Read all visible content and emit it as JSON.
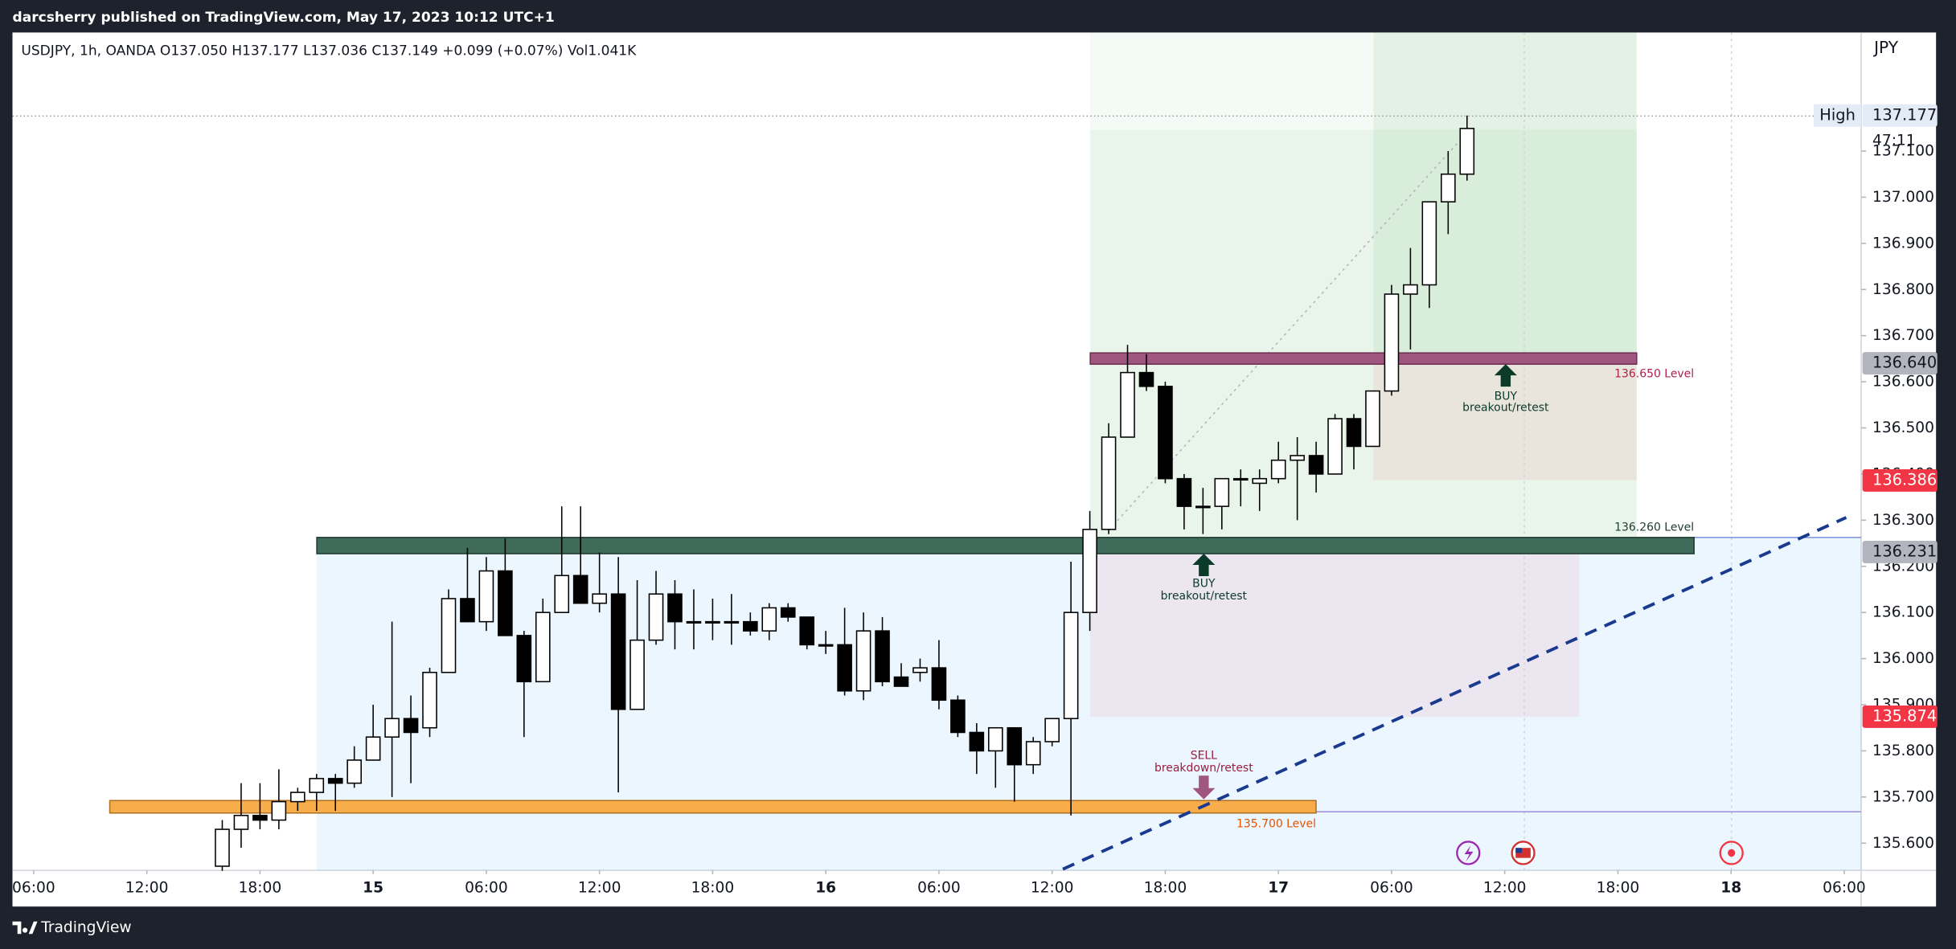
{
  "header": {
    "title": "darcsherry published on TradingView.com, May 17, 2023 10:12 UTC+1"
  },
  "chart_data": {
    "type": "candlestick",
    "legend": "USDJPY, 1h, OANDA  O137.050  H137.177  L137.036  C137.149  +0.099 (+0.07%)  Vol1.041K",
    "currency": "JPY",
    "up_color": "#ffffff",
    "down_color": "#000000",
    "wick_color": "#000000",
    "xlim": [
      4.876,
      102.9
    ],
    "xticks": [
      {
        "value": 6,
        "label": "06:00"
      },
      {
        "value": 12,
        "label": "12:00"
      },
      {
        "value": 18,
        "label": "18:00"
      },
      {
        "value": 24,
        "label": "15"
      },
      {
        "value": 30,
        "label": "06:00"
      },
      {
        "value": 36,
        "label": "12:00"
      },
      {
        "value": 42,
        "label": "18:00"
      },
      {
        "value": 48,
        "label": "16"
      },
      {
        "value": 54,
        "label": "06:00"
      },
      {
        "value": 60,
        "label": "12:00"
      },
      {
        "value": 66,
        "label": "18:00"
      },
      {
        "value": 72,
        "label": "17"
      },
      {
        "value": 78,
        "label": "06:00"
      },
      {
        "value": 84,
        "label": "12:00"
      },
      {
        "value": 90,
        "label": "18:00"
      },
      {
        "value": 96,
        "label": "18"
      },
      {
        "value": 102,
        "label": "06:00"
      }
    ],
    "ylim": [
      135.541,
      137.357
    ],
    "yticks": [
      {
        "value": 135.6,
        "label": "135.600"
      },
      {
        "value": 135.7,
        "label": "135.700"
      },
      {
        "value": 135.8,
        "label": "135.800"
      },
      {
        "value": 135.9,
        "label": "135.900"
      },
      {
        "value": 136.0,
        "label": "136.000"
      },
      {
        "value": 136.1,
        "label": "136.100"
      },
      {
        "value": 136.2,
        "label": "136.200"
      },
      {
        "value": 136.3,
        "label": "136.300"
      },
      {
        "value": 136.4,
        "label": "136.400"
      },
      {
        "value": 136.5,
        "label": "136.500"
      },
      {
        "value": 136.6,
        "label": "136.600"
      },
      {
        "value": 136.7,
        "label": "136.700"
      },
      {
        "value": 136.8,
        "label": "136.800"
      },
      {
        "value": 136.9,
        "label": "136.900"
      },
      {
        "value": 137.0,
        "label": "137.000"
      },
      {
        "value": 137.1,
        "label": "137.100"
      }
    ],
    "x": [
      16,
      17,
      18,
      19,
      20,
      21,
      22,
      23,
      24,
      25,
      26,
      27,
      28,
      29,
      30,
      31,
      32,
      33,
      34,
      35,
      36,
      37,
      38,
      39,
      40,
      41,
      42,
      43,
      44,
      45,
      46,
      47,
      48,
      49,
      50,
      51,
      52,
      53,
      54,
      55,
      56,
      57,
      58,
      59,
      60,
      61,
      62,
      63,
      64,
      65,
      66,
      67,
      68,
      69,
      70,
      71,
      72,
      73,
      74,
      75,
      76,
      77,
      78,
      79,
      80,
      81,
      82
    ],
    "open": [
      135.55,
      135.63,
      135.66,
      135.65,
      135.69,
      135.71,
      135.74,
      135.73,
      135.78,
      135.83,
      135.87,
      135.85,
      135.97,
      136.13,
      136.08,
      136.19,
      136.05,
      135.95,
      136.1,
      136.18,
      136.12,
      136.14,
      135.89,
      136.04,
      136.14,
      136.08,
      136.08,
      136.08,
      136.08,
      136.06,
      136.11,
      136.09,
      136.03,
      136.03,
      135.93,
      136.06,
      135.96,
      135.97,
      135.98,
      135.91,
      135.84,
      135.8,
      135.85,
      135.77,
      135.82,
      135.87,
      136.1,
      136.28,
      136.48,
      136.62,
      136.59,
      136.39,
      136.33,
      136.33,
      136.39,
      136.38,
      136.39,
      136.43,
      136.44,
      136.4,
      136.52,
      136.46,
      136.58,
      136.79,
      136.81,
      136.99,
      137.05
    ],
    "high": [
      135.65,
      135.73,
      135.73,
      135.76,
      135.72,
      135.75,
      135.75,
      135.81,
      135.9,
      136.08,
      135.92,
      135.98,
      136.15,
      136.24,
      136.22,
      136.26,
      136.06,
      136.13,
      136.33,
      136.33,
      136.23,
      136.22,
      136.17,
      136.19,
      136.17,
      136.15,
      136.13,
      136.14,
      136.1,
      136.12,
      136.12,
      136.09,
      136.06,
      136.11,
      136.1,
      136.09,
      135.99,
      136.0,
      136.04,
      135.92,
      135.86,
      135.85,
      135.85,
      135.83,
      135.87,
      136.21,
      136.32,
      136.51,
      136.68,
      136.66,
      136.6,
      136.4,
      136.37,
      136.39,
      136.41,
      136.41,
      136.47,
      136.48,
      136.47,
      136.53,
      136.53,
      136.58,
      136.81,
      136.89,
      136.99,
      137.1,
      137.177
    ],
    "low": [
      135.54,
      135.59,
      135.63,
      135.63,
      135.67,
      135.67,
      135.67,
      135.72,
      135.78,
      135.7,
      135.73,
      135.83,
      135.97,
      136.08,
      136.06,
      136.05,
      135.83,
      135.95,
      136.1,
      136.12,
      136.1,
      135.71,
      135.89,
      136.03,
      136.02,
      136.02,
      136.04,
      136.03,
      136.05,
      136.04,
      136.08,
      136.02,
      136.01,
      135.92,
      135.91,
      135.94,
      135.94,
      135.95,
      135.89,
      135.83,
      135.75,
      135.72,
      135.69,
      135.75,
      135.81,
      135.66,
      136.06,
      136.27,
      136.48,
      136.58,
      136.38,
      136.28,
      136.27,
      136.28,
      136.33,
      136.32,
      136.38,
      136.3,
      136.36,
      136.4,
      136.41,
      136.46,
      136.57,
      136.67,
      136.76,
      136.92,
      137.036
    ],
    "close": [
      135.63,
      135.66,
      135.65,
      135.69,
      135.71,
      135.74,
      135.73,
      135.78,
      135.83,
      135.87,
      135.84,
      135.97,
      136.13,
      136.08,
      136.19,
      136.05,
      135.95,
      136.1,
      136.18,
      136.12,
      136.14,
      135.89,
      136.04,
      136.14,
      136.08,
      136.08,
      136.08,
      136.08,
      136.06,
      136.11,
      136.09,
      136.03,
      136.03,
      135.93,
      136.06,
      135.95,
      135.94,
      135.98,
      135.91,
      135.84,
      135.8,
      135.85,
      135.77,
      135.82,
      135.87,
      136.1,
      136.28,
      136.48,
      136.62,
      136.59,
      136.39,
      136.33,
      136.33,
      136.39,
      136.39,
      136.39,
      136.43,
      136.44,
      136.4,
      136.52,
      136.46,
      136.58,
      136.79,
      136.81,
      136.99,
      137.05,
      137.149
    ],
    "price_markers": [
      {
        "value": 137.177,
        "label": "137.177",
        "tag": "High",
        "bg": "#e3ecf6",
        "fg": "#131722"
      },
      {
        "value": 136.64,
        "label": "136.640",
        "bg": "#b2b5be",
        "fg": "#131722"
      },
      {
        "value": 136.386,
        "label": "136.386",
        "bg": "#f23645",
        "fg": "#ffffff"
      },
      {
        "value": 136.231,
        "label": "136.231",
        "bg": "#b2b5be",
        "fg": "#131722"
      },
      {
        "value": 135.874,
        "label": "135.874",
        "bg": "#f23645",
        "fg": "#ffffff"
      }
    ],
    "countdown": "47:11",
    "annotations": {
      "level_high": "136.650 Level",
      "level_mid": "136.260 Level",
      "level_low": "135.700 Level",
      "buy1": "BUY",
      "buy1_sub": "breakout/retest",
      "buy2": "BUY",
      "buy2_sub": "breakout/retest",
      "sell": "SELL",
      "sell_sub": "breakdown/retest"
    }
  },
  "footer": {
    "brand": "TradingView"
  }
}
